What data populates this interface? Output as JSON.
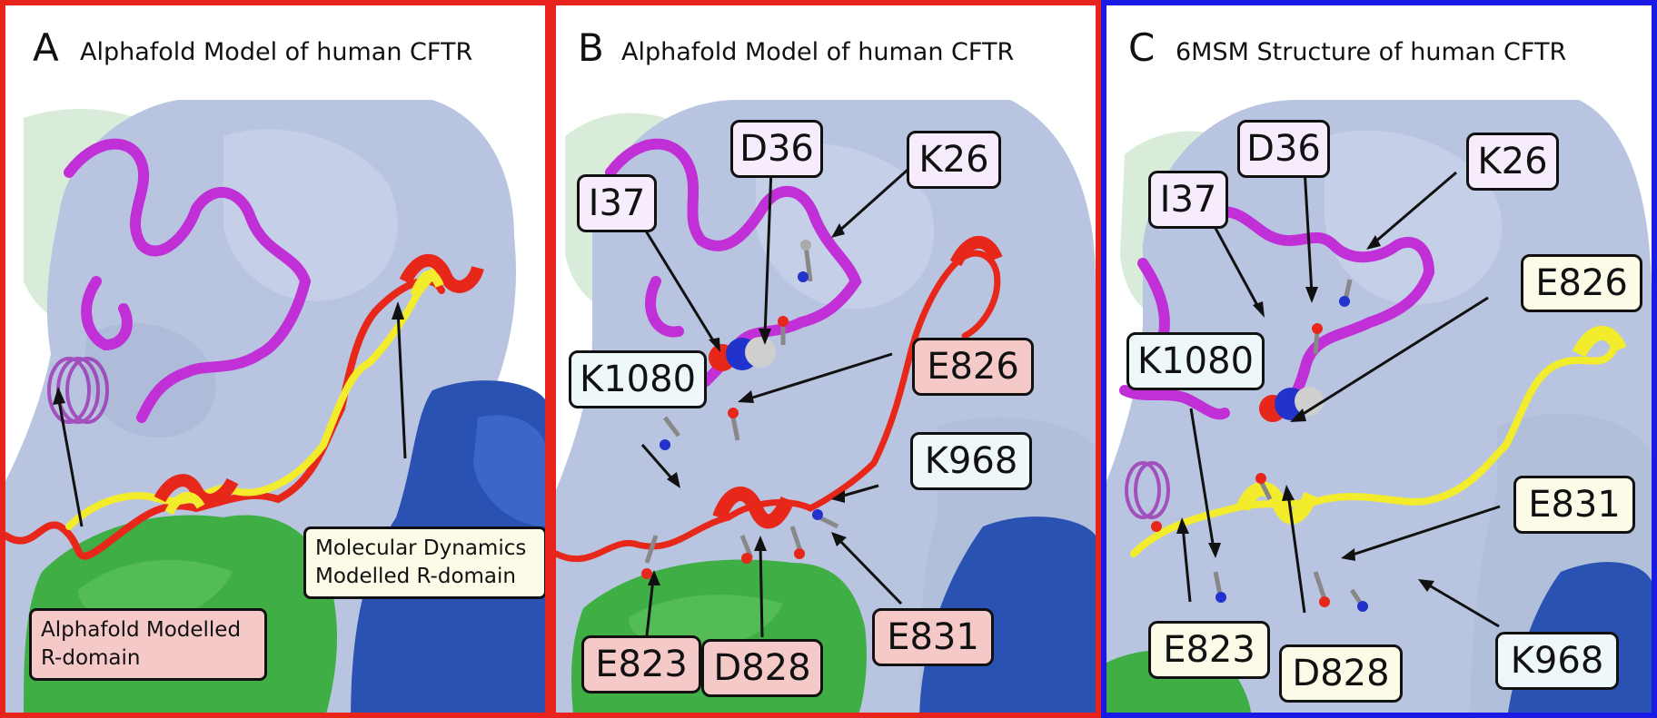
{
  "colors": {
    "frame_ab": "#e8231b",
    "frame_c": "#1a1ae6",
    "surface_main": "#b9c5e0",
    "surface_green": "#3fae45",
    "surface_blue": "#2a52b2",
    "helix_magenta": "#c12fd6",
    "rdomain_red": "#e8271b",
    "rdomain_yellow": "#f2ec2c"
  },
  "panels": [
    {
      "letter": "A",
      "title": "Alphafold Model of human CFTR",
      "notes": [
        {
          "lines": [
            "Molecular Dynamics",
            "Modelled R-domain"
          ]
        },
        {
          "lines": [
            "Alphafold Modelled",
            "R-domain"
          ]
        }
      ]
    },
    {
      "letter": "B",
      "title": "Alphafold Model of human CFTR",
      "labels": [
        "D36",
        "K26",
        "I37",
        "K1080",
        "E826",
        "K968",
        "E831",
        "E823",
        "D828"
      ]
    },
    {
      "letter": "C",
      "title": "6MSM Structure of human CFTR",
      "labels": [
        "D36",
        "K26",
        "I37",
        "E826",
        "K1080",
        "E831",
        "E823",
        "D828",
        "K968"
      ]
    }
  ]
}
